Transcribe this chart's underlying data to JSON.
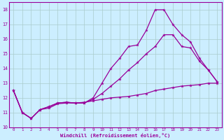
{
  "xlabel": "Windchill (Refroidissement éolien,°C)",
  "background_color": "#cceeff",
  "grid_color": "#aacccc",
  "line_color": "#990099",
  "xlim": [
    -0.5,
    23.5
  ],
  "ylim": [
    10,
    18.5
  ],
  "xticks": [
    0,
    1,
    2,
    3,
    4,
    5,
    6,
    7,
    8,
    9,
    10,
    11,
    12,
    13,
    14,
    15,
    16,
    17,
    18,
    19,
    20,
    21,
    22,
    23
  ],
  "yticks": [
    10,
    11,
    12,
    13,
    14,
    15,
    16,
    17,
    18
  ],
  "line1_x": [
    0,
    1,
    2,
    3,
    4,
    5,
    6,
    7,
    8,
    9,
    10,
    11,
    12,
    13,
    14,
    15,
    16,
    17,
    18,
    19,
    20,
    21,
    22,
    23
  ],
  "line1_y": [
    12.5,
    11.0,
    10.6,
    11.2,
    11.3,
    11.6,
    11.65,
    11.65,
    11.7,
    11.8,
    11.9,
    12.0,
    12.05,
    12.1,
    12.2,
    12.3,
    12.5,
    12.6,
    12.7,
    12.8,
    12.85,
    12.9,
    13.0,
    13.0
  ],
  "line2_x": [
    0,
    1,
    2,
    3,
    4,
    5,
    6,
    7,
    8,
    9,
    10,
    11,
    12,
    13,
    14,
    15,
    16,
    17,
    18,
    19,
    20,
    21,
    22,
    23
  ],
  "line2_y": [
    12.5,
    11.0,
    10.6,
    11.2,
    11.4,
    11.65,
    11.7,
    11.65,
    11.65,
    12.0,
    13.0,
    14.0,
    14.7,
    15.5,
    15.6,
    16.6,
    18.0,
    18.0,
    17.0,
    16.3,
    15.8,
    14.7,
    13.9,
    13.1
  ],
  "line3_x": [
    0,
    1,
    2,
    3,
    4,
    5,
    6,
    7,
    8,
    9,
    10,
    11,
    12,
    13,
    14,
    15,
    16,
    17,
    18,
    19,
    20,
    21,
    22,
    23
  ],
  "line3_y": [
    12.5,
    11.0,
    10.6,
    11.2,
    11.4,
    11.65,
    11.7,
    11.65,
    11.65,
    11.9,
    12.3,
    12.8,
    13.3,
    13.9,
    14.4,
    15.0,
    15.5,
    16.3,
    16.3,
    15.5,
    15.4,
    14.5,
    13.9,
    13.1
  ]
}
